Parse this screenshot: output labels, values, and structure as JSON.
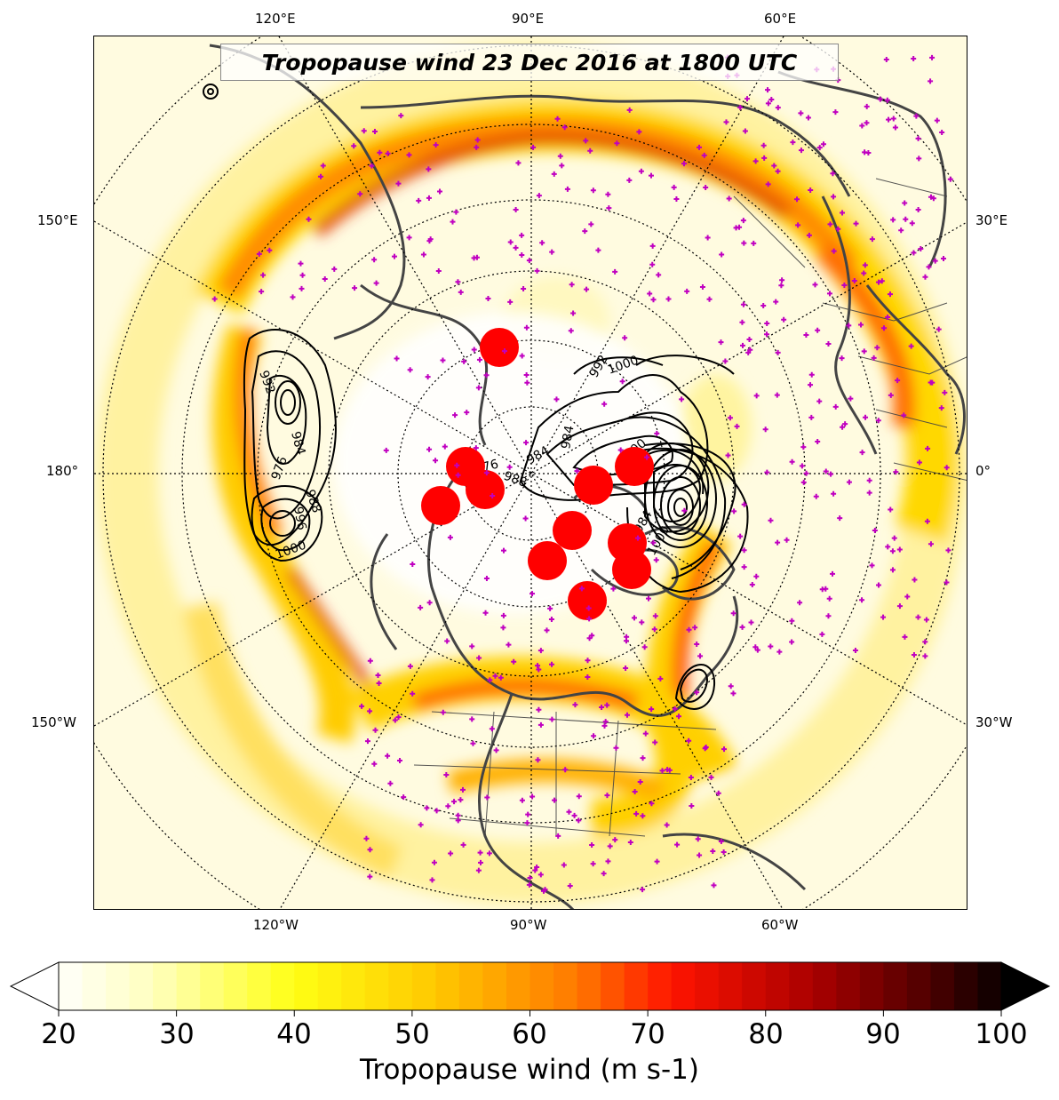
{
  "title": "Tropopause wind 23 Dec 2016 at 1800 UTC",
  "longitude_labels": {
    "top": [
      "120°E",
      "90°E",
      "60°E"
    ],
    "left": [
      "150°E",
      "180°",
      "150°W"
    ],
    "right": [
      "30°E",
      "0°",
      "30°W"
    ],
    "bottom": [
      "120°W",
      "90°W",
      "60°W"
    ]
  },
  "colorbar": {
    "label": "Tropopause wind (m s-1)",
    "ticks": [
      "20",
      "30",
      "40",
      "50",
      "60",
      "70",
      "80",
      "90",
      "100"
    ],
    "range": [
      20,
      100
    ],
    "extend": "both"
  },
  "contour_labels": [
    "992",
    "1000",
    "984",
    "996",
    "988",
    "976",
    "1000",
    "988",
    "984",
    "976",
    "984",
    "1000",
    "992",
    "996",
    "984",
    "1000"
  ],
  "colors": {
    "marker": "#c000c0",
    "cyclone": "#ff0000",
    "coastline": "#444444",
    "graticule": "#000000"
  }
}
